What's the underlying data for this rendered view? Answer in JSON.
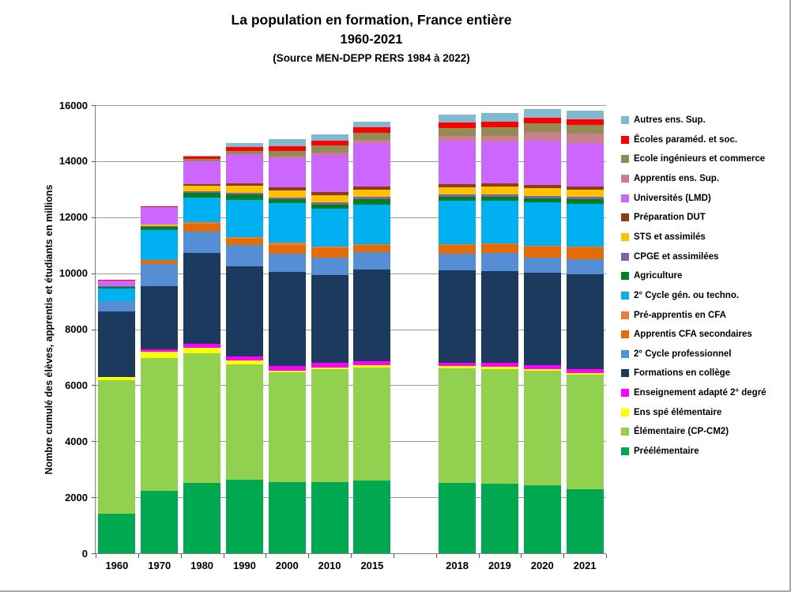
{
  "title": {
    "line1": "La population en formation, France entière",
    "line2": "1960-2021",
    "line3": "(Source MEN-DEPP RERS 1984 à 2022)"
  },
  "y_axis": {
    "label": "Nombre cumulé des élèves, apprentis et étudiants en millions",
    "tick_labels": [
      "0",
      "2000",
      "4000",
      "6000",
      "8000",
      "10000",
      "12000",
      "14000",
      "16000"
    ]
  },
  "chart_data": {
    "type": "bar",
    "stacked": true,
    "title": "La population en formation, France entière 1960-2021",
    "subtitle": "(Source MEN-DEPP RERS 1984 à 2022)",
    "xlabel": "",
    "ylabel": "Nombre cumulé des élèves, apprentis et étudiants en millions",
    "ylim": [
      0,
      16000
    ],
    "ytick_step": 2000,
    "grid": true,
    "legend_position": "right",
    "legend_order": "top of legend = top of stack",
    "categories": [
      "1960",
      "1970",
      "1980",
      "1990",
      "2000",
      "2010",
      "2015",
      "2018",
      "2019",
      "2020",
      "2021"
    ],
    "gap_after_category": "2015",
    "series": [
      {
        "name": "Préélémentaire",
        "color": "#00A850",
        "values": [
          1410,
          2220,
          2500,
          2630,
          2540,
          2540,
          2595,
          2500,
          2480,
          2425,
          2295
        ]
      },
      {
        "name": "Élémentaire (CP-CM2)",
        "color": "#92D050",
        "values": [
          4760,
          4760,
          4625,
          4120,
          3905,
          4040,
          4040,
          4100,
          4100,
          4080,
          4080
        ]
      },
      {
        "name": "Ens spé élémentaire",
        "color": "#FFFF00",
        "values": [
          120,
          210,
          210,
          130,
          75,
          55,
          75,
          75,
          75,
          75,
          60
        ]
      },
      {
        "name": "Enseignement adapté 2° degré",
        "color": "#FF00FF",
        "values": [
          0,
          75,
          150,
          150,
          170,
          150,
          150,
          130,
          130,
          130,
          130
        ]
      },
      {
        "name": "Formations en collège",
        "color": "#1C3A5E",
        "values": [
          2350,
          2270,
          3230,
          3220,
          3350,
          3140,
          3255,
          3290,
          3290,
          3310,
          3400
        ]
      },
      {
        "name": "2° Cycle professionnel",
        "color": "#558ED5",
        "values": [
          350,
          790,
          760,
          750,
          640,
          630,
          640,
          600,
          640,
          545,
          525
        ]
      },
      {
        "name": "Apprentis CFA secondaires",
        "color": "#E36C09",
        "values": [
          0,
          150,
          300,
          230,
          330,
          330,
          250,
          305,
          310,
          380,
          420
        ]
      },
      {
        "name": "Pré-apprentis en CFA",
        "color": "#ED7D31",
        "values": [
          0,
          0,
          60,
          50,
          65,
          65,
          30,
          35,
          30,
          35,
          30
        ]
      },
      {
        "name": "2° Cycle gén. ou techno.",
        "color": "#00B0F0",
        "values": [
          450,
          1060,
          870,
          1340,
          1410,
          1355,
          1410,
          1540,
          1520,
          1545,
          1525
        ]
      },
      {
        "name": "Agriculture",
        "color": "#008026",
        "values": [
          66,
          120,
          170,
          190,
          150,
          150,
          200,
          150,
          160,
          150,
          165
        ]
      },
      {
        "name": "CPGE et assimilées",
        "color": "#8064A2",
        "values": [
          21,
          30,
          40,
          70,
          75,
          75,
          86,
          86,
          86,
          86,
          85
        ]
      },
      {
        "name": "STS et assimilés",
        "color": "#FFC000",
        "values": [
          10,
          50,
          200,
          250,
          230,
          240,
          255,
          260,
          265,
          270,
          270
        ]
      },
      {
        "name": "Préparation DUT",
        "color": "#8F3B14",
        "values": [
          0,
          10,
          55,
          75,
          120,
          115,
          116,
          120,
          120,
          120,
          120
        ]
      },
      {
        "name": "Universités (LMD)",
        "color": "#CC66FF",
        "values": [
          200,
          610,
          830,
          1040,
          1050,
          1325,
          1530,
          1530,
          1495,
          1570,
          1540
        ]
      },
      {
        "name": "Apprentis ens. Sup.",
        "color": "#C9808A",
        "values": [
          0,
          0,
          0,
          0,
          55,
          110,
          130,
          190,
          210,
          320,
          340
        ]
      },
      {
        "name": "Ecole ingénieurs et commerce",
        "color": "#948A54",
        "values": [
          0,
          0,
          70,
          120,
          205,
          230,
          250,
          280,
          300,
          320,
          320
        ]
      },
      {
        "name": "Écoles paraméd. et soc.",
        "color": "#FF0000",
        "values": [
          30,
          40,
          95,
          140,
          170,
          170,
          190,
          190,
          205,
          190,
          185
        ]
      },
      {
        "name": "Autres ens. Sup.",
        "color": "#82B9CE",
        "values": [
          0,
          0,
          30,
          150,
          245,
          245,
          210,
          280,
          300,
          320,
          300
        ]
      }
    ]
  }
}
